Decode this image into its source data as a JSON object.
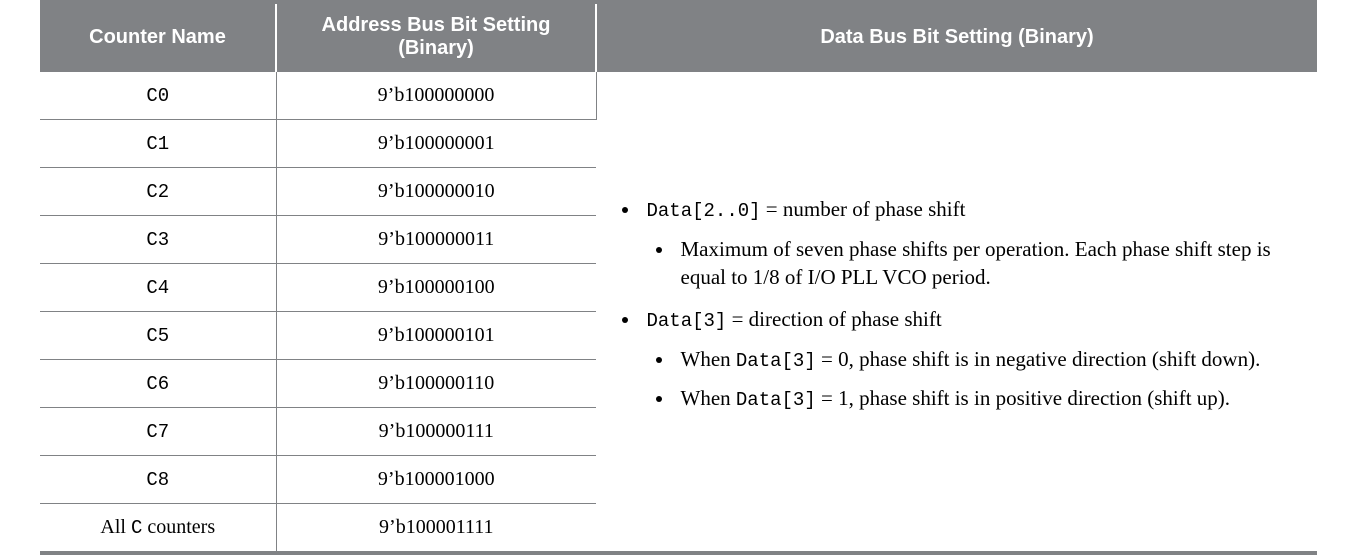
{
  "table": {
    "columns": [
      "Counter Name",
      "Address Bus Bit Setting (Binary)",
      "Data Bus Bit Setting (Binary)"
    ],
    "rows": [
      {
        "name": "C0",
        "addr": "9’b100000000"
      },
      {
        "name": "C1",
        "addr": "9’b100000001"
      },
      {
        "name": "C2",
        "addr": "9’b100000010"
      },
      {
        "name": "C3",
        "addr": "9’b100000011"
      },
      {
        "name": "C4",
        "addr": "9’b100000100"
      },
      {
        "name": "C5",
        "addr": "9’b100000101"
      },
      {
        "name": "C6",
        "addr": "9’b100000110"
      },
      {
        "name": "C7",
        "addr": "9’b100000111"
      },
      {
        "name": "C8",
        "addr": "9’b100001000"
      }
    ],
    "last_row": {
      "name_prefix": "All ",
      "name_mono": "C",
      "name_suffix": " counters",
      "addr": "9’b100001111"
    },
    "data_col": {
      "b1_code": "Data[2..0]",
      "b1_tail": " = number of phase shift",
      "b1_sub": "Maximum of seven phase shifts per operation. Each phase shift step is equal to 1/8 of I/O PLL VCO period.",
      "b2_code": "Data[3]",
      "b2_tail": " = direction of phase shift",
      "b2_sub1_pre": "When ",
      "b2_sub1_code": "Data[3]",
      "b2_sub1_post": " = 0, phase shift is in negative direction (shift down).",
      "b2_sub2_pre": "When ",
      "b2_sub2_code": "Data[3]",
      "b2_sub2_post": " = 1, phase shift is in positive direction (shift up)."
    },
    "style": {
      "header_bg": "#808285",
      "header_fg": "#ffffff",
      "border_color": "#808285",
      "body_font": "Georgia",
      "header_font": "Segoe UI",
      "mono_font": "Courier New",
      "body_font_size_pt": 15,
      "header_font_size_pt": 15
    }
  }
}
